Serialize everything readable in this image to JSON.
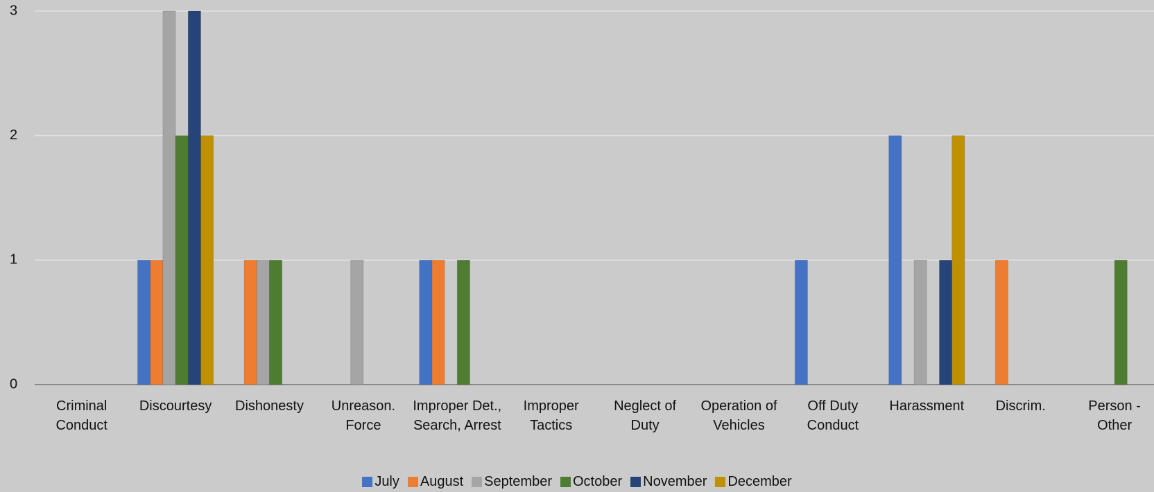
{
  "chart_data": {
    "type": "bar",
    "categories": [
      "Criminal Conduct",
      "Discourtesy",
      "Dishonesty",
      "Unreason. Force",
      "Improper Det., Search, Arrest",
      "Improper Tactics",
      "Neglect of Duty",
      "Operation of Vehicles",
      "Off Duty Conduct",
      "Harassment",
      "Discrim.",
      "Person - Other"
    ],
    "series": [
      {
        "name": "July",
        "color": "#4472c4",
        "values": [
          0,
          1,
          0,
          0,
          1,
          0,
          0,
          0,
          1,
          2,
          0,
          0
        ]
      },
      {
        "name": "August",
        "color": "#ed7d31",
        "values": [
          0,
          1,
          1,
          0,
          1,
          0,
          0,
          0,
          0,
          0,
          1,
          0
        ]
      },
      {
        "name": "September",
        "color": "#a5a5a5",
        "values": [
          0,
          3,
          1,
          1,
          0,
          0,
          0,
          0,
          0,
          1,
          0,
          0
        ]
      },
      {
        "name": "October",
        "color": "#4e7d32",
        "values": [
          0,
          2,
          1,
          0,
          1,
          0,
          0,
          0,
          0,
          0,
          0,
          1
        ]
      },
      {
        "name": "November",
        "color": "#264478",
        "values": [
          0,
          3,
          0,
          0,
          0,
          0,
          0,
          0,
          0,
          1,
          0,
          0
        ]
      },
      {
        "name": "December",
        "color": "#bf9000",
        "values": [
          0,
          2,
          0,
          0,
          0,
          0,
          0,
          0,
          0,
          2,
          0,
          0
        ]
      }
    ],
    "ylim": [
      0,
      3
    ],
    "yticks": [
      0,
      1,
      2,
      3
    ],
    "grid": true,
    "legend": "bottom"
  }
}
